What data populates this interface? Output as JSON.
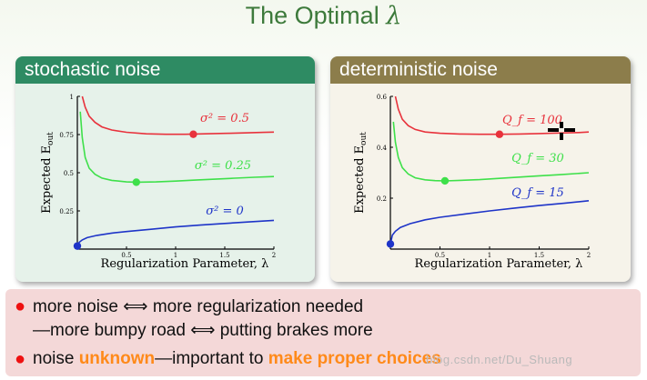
{
  "slide": {
    "title_text": "The Optimal",
    "title_symbol": "λ",
    "watermark": "blog.csdn.net/Du_Shuang"
  },
  "colors": {
    "red": "#e8323c",
    "green": "#3ee04a",
    "blue": "#1e34c8",
    "left_header": "#2e8b63",
    "right_header": "#8c7d4b"
  },
  "chart_data": [
    {
      "type": "line",
      "title": "stochastic noise",
      "xlabel": "Regularization Parameter, λ",
      "ylabel": "Expected E_out",
      "xlim": [
        0,
        2
      ],
      "ylim": [
        0,
        1
      ],
      "x_ticks": [
        0.5,
        1,
        1.5,
        2
      ],
      "x_tick_labels": [
        "0.5",
        "1",
        "1.5",
        "2"
      ],
      "y_ticks": [
        0.25,
        0.5,
        0.75,
        1
      ],
      "y_tick_labels": [
        "0.25",
        "0.5",
        "0.75",
        "1"
      ],
      "series": [
        {
          "name": "σ² = 0.5",
          "color": "#e8323c",
          "x": [
            0.05,
            0.08,
            0.12,
            0.18,
            0.25,
            0.35,
            0.5,
            0.7,
            0.9,
            1.1,
            1.3,
            1.5,
            1.7,
            1.9,
            2.0
          ],
          "y": [
            1.0,
            0.93,
            0.87,
            0.83,
            0.8,
            0.78,
            0.765,
            0.755,
            0.752,
            0.752,
            0.755,
            0.758,
            0.761,
            0.764,
            0.766
          ],
          "optimum": [
            1.18,
            0.752
          ]
        },
        {
          "name": "σ² = 0.25",
          "color": "#3ee04a",
          "x": [
            0.03,
            0.05,
            0.08,
            0.12,
            0.18,
            0.25,
            0.35,
            0.5,
            0.6,
            0.8,
            1.0,
            1.2,
            1.4,
            1.6,
            1.8,
            2.0
          ],
          "y": [
            0.9,
            0.73,
            0.6,
            0.53,
            0.49,
            0.465,
            0.45,
            0.44,
            0.438,
            0.44,
            0.445,
            0.452,
            0.458,
            0.464,
            0.47,
            0.475
          ],
          "optimum": [
            0.6,
            0.438
          ]
        },
        {
          "name": "σ² = 0",
          "color": "#1e34c8",
          "x": [
            0,
            0.02,
            0.05,
            0.1,
            0.2,
            0.35,
            0.5,
            0.75,
            1.0,
            1.25,
            1.5,
            1.75,
            2.0
          ],
          "y": [
            0.02,
            0.045,
            0.06,
            0.075,
            0.09,
            0.105,
            0.115,
            0.13,
            0.145,
            0.157,
            0.168,
            0.178,
            0.188
          ],
          "optimum": [
            0,
            0.02
          ]
        }
      ]
    },
    {
      "type": "line",
      "title": "deterministic noise",
      "xlabel": "Regularization Parameter, λ",
      "ylabel": "Expected E_out",
      "xlim": [
        0,
        2
      ],
      "ylim": [
        0,
        0.6
      ],
      "x_ticks": [
        0.5,
        1,
        1.5,
        2
      ],
      "x_tick_labels": [
        "0.5",
        "1",
        "1.5",
        "2"
      ],
      "y_ticks": [
        0.2,
        0.4,
        0.6
      ],
      "y_tick_labels": [
        "0.2",
        "0.4",
        "0.6"
      ],
      "series": [
        {
          "name": "Q_f = 100",
          "color": "#e8323c",
          "x": [
            0.05,
            0.08,
            0.12,
            0.18,
            0.25,
            0.35,
            0.5,
            0.7,
            0.9,
            1.1,
            1.3,
            1.5,
            1.7,
            1.9,
            2.0
          ],
          "y": [
            0.6,
            0.55,
            0.51,
            0.485,
            0.47,
            0.46,
            0.455,
            0.452,
            0.451,
            0.451,
            0.452,
            0.454,
            0.456,
            0.458,
            0.46
          ],
          "optimum": [
            1.1,
            0.451
          ]
        },
        {
          "name": "Q_f = 30",
          "color": "#3ee04a",
          "x": [
            0.03,
            0.05,
            0.08,
            0.12,
            0.18,
            0.25,
            0.35,
            0.45,
            0.55,
            0.7,
            0.9,
            1.1,
            1.3,
            1.5,
            1.7,
            2.0
          ],
          "y": [
            0.5,
            0.42,
            0.36,
            0.32,
            0.295,
            0.28,
            0.272,
            0.269,
            0.268,
            0.27,
            0.273,
            0.278,
            0.283,
            0.288,
            0.292,
            0.3
          ],
          "optimum": [
            0.55,
            0.268
          ]
        },
        {
          "name": "Q_f = 15",
          "color": "#1e34c8",
          "x": [
            0,
            0.02,
            0.05,
            0.1,
            0.2,
            0.35,
            0.5,
            0.75,
            1.0,
            1.25,
            1.5,
            1.75,
            2.0
          ],
          "y": [
            0.02,
            0.055,
            0.07,
            0.085,
            0.1,
            0.115,
            0.125,
            0.138,
            0.15,
            0.161,
            0.171,
            0.18,
            0.19
          ],
          "optimum": [
            0,
            0.02
          ]
        }
      ]
    }
  ],
  "bullets": {
    "b1_a": "more noise",
    "b1_arrow": "⟺",
    "b1_b": "more regularization needed",
    "b2_a": "—more bumpy road",
    "b2_arrow": "⟺",
    "b2_b": "putting brakes more",
    "b3_a": "noise",
    "b3_hl1": "unknown",
    "b3_b": "—important to",
    "b3_hl2": "make proper choices"
  }
}
